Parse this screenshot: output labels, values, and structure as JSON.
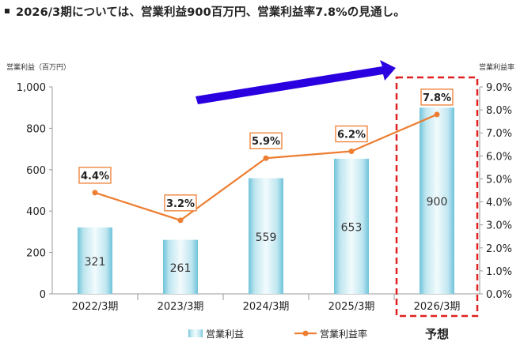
{
  "headline": "2026/3期については、営業利益900百万円、営業利益率7.8%の見通し。",
  "colors": {
    "bar_light": "#e8f6fa",
    "bar_dark": "#6fc3da",
    "line": "#ed7d31",
    "forecast_box": "#e02020",
    "arrow": "#2b00e0"
  },
  "chart_data": {
    "type": "bar+line",
    "categories": [
      "2022/3期",
      "2023/3期",
      "2024/3期",
      "2025/3期",
      "2026/3期"
    ],
    "series": [
      {
        "name": "営業利益",
        "type": "bar",
        "axis": "left",
        "values": [
          321,
          261,
          559,
          653,
          900
        ],
        "labels": [
          "321",
          "261",
          "559",
          "653",
          "900"
        ]
      },
      {
        "name": "営業利益率",
        "type": "line",
        "axis": "right",
        "values": [
          4.4,
          3.2,
          5.9,
          6.2,
          7.8
        ],
        "labels": [
          "4.4%",
          "3.2%",
          "5.9%",
          "6.2%",
          "7.8%"
        ]
      }
    ],
    "ylabel_left": "営業利益（百万円）",
    "ylabel_right": "営業利益率",
    "ylim_left": [
      0,
      1000
    ],
    "ylim_right": [
      0,
      9
    ],
    "yticks_left": [
      "0",
      "200",
      "400",
      "600",
      "800",
      "1,000"
    ],
    "yticks_right": [
      "0.0%",
      "1.0%",
      "2.0%",
      "3.0%",
      "4.0%",
      "5.0%",
      "6.0%",
      "7.0%",
      "8.0%",
      "9.0%"
    ],
    "forecast_label": "予想",
    "forecast_index": 4,
    "legend_position": "bottom"
  }
}
